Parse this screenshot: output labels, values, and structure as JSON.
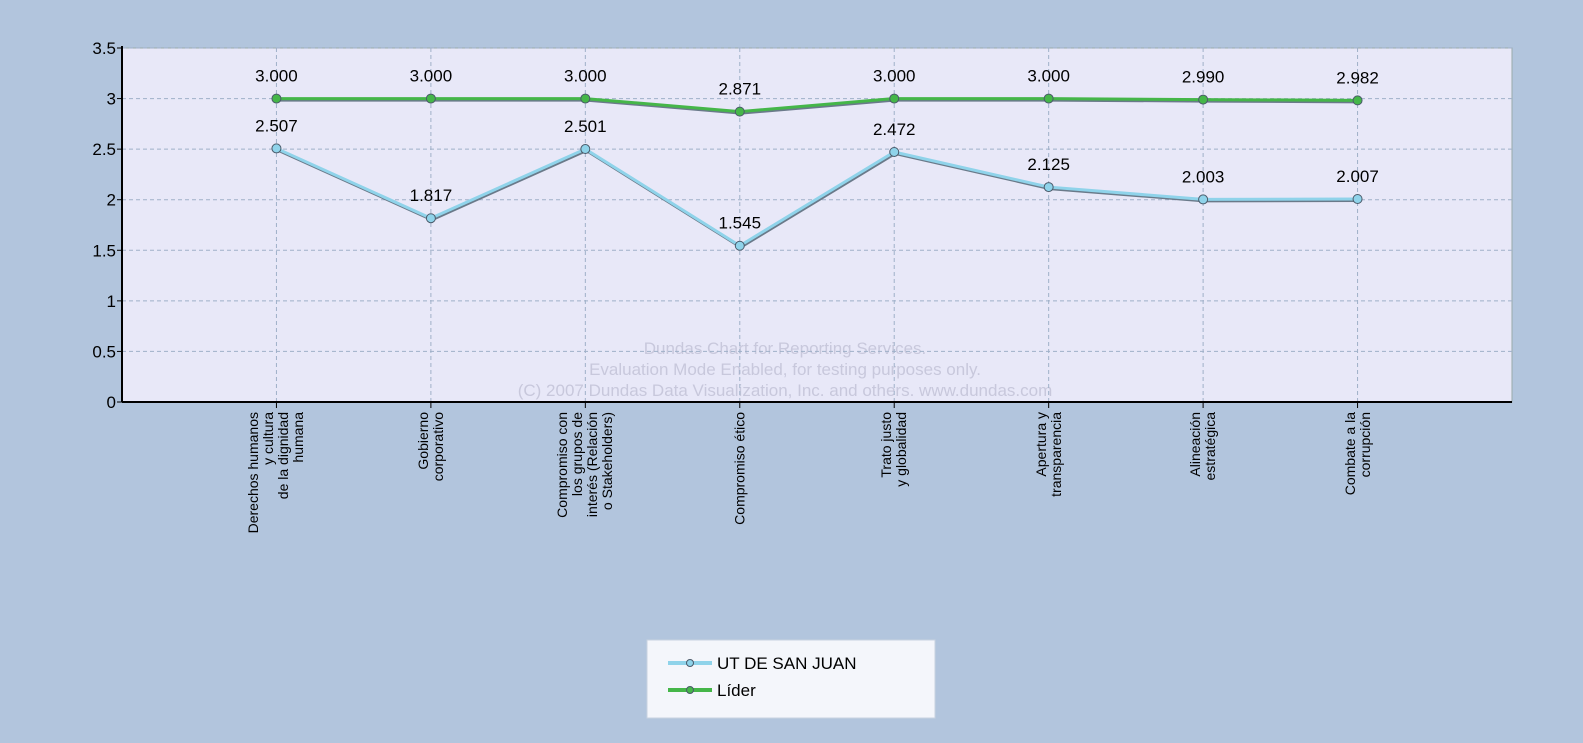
{
  "chart_data": {
    "type": "line",
    "categories": [
      "Derechos humanos\ny cultura\nde la dignidad\nhumana",
      "Gobierno\ncorporativo",
      "Compromiso con\nlos grupos de\ninterés (Relación\no Stakeholders)",
      "Compromiso ético",
      "Trato justo\ny globalidad",
      "Apertura y\ntransparencia",
      "Alineación\nestratégica",
      "Combate a la\ncorrupción"
    ],
    "series": [
      {
        "name": "UT DE SAN JUAN",
        "color": "#8fd3ea",
        "values": [
          2.507,
          1.817,
          2.501,
          1.545,
          2.472,
          2.125,
          2.003,
          2.007
        ],
        "value_labels": [
          "2.507",
          "1.817",
          "2.501",
          "1.545",
          "2.472",
          "2.125",
          "2.003",
          "2.007"
        ]
      },
      {
        "name": "Líder",
        "color": "#45b649",
        "values": [
          3,
          3,
          3,
          2.871,
          3,
          3,
          2.99,
          2.982
        ],
        "value_labels": [
          "3.000",
          "3.000",
          "3.000",
          "2.871",
          "3.000",
          "3.000",
          "2.990",
          "2.982"
        ]
      }
    ],
    "ylim": [
      0,
      3.5
    ],
    "yticks": [
      0,
      0.5,
      1,
      1.5,
      2,
      2.5,
      3,
      3.5
    ],
    "grid": true,
    "legend": "bottom",
    "watermark": [
      "Dundas Chart for Reporting Services.",
      "Evaluation Mode Enabled, for testing purposes only.",
      "(C) 2007 Dundas Data Visualization, Inc. and others. www.dundas.com"
    ]
  }
}
